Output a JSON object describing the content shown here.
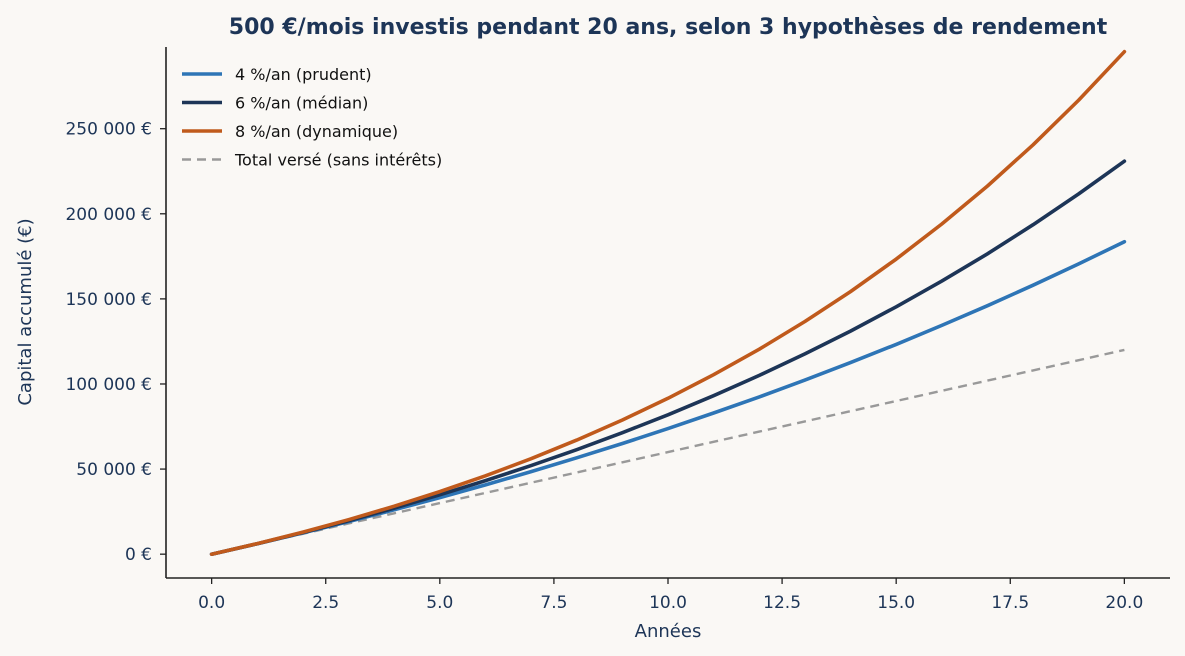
{
  "chart_data": {
    "type": "line",
    "title": "500 €/mois investis pendant 20 ans, selon 3 hypothèses de rendement",
    "xlabel": "Années",
    "ylabel": "Capital accumulé (€)",
    "xlim": [
      -1,
      21
    ],
    "ylim": [
      -14000,
      298000
    ],
    "xticks": [
      0,
      2.5,
      5,
      7.5,
      10,
      12.5,
      15,
      17.5,
      20
    ],
    "xtick_labels": [
      "0.0",
      "2.5",
      "5.0",
      "7.5",
      "10.0",
      "12.5",
      "15.0",
      "17.5",
      "20.0"
    ],
    "yticks": [
      0,
      50000,
      100000,
      150000,
      200000,
      250000
    ],
    "ytick_labels": [
      "0 €",
      "50 000 €",
      "100 000 €",
      "150 000 €",
      "200 000 €",
      "250 000 €"
    ],
    "grid": false,
    "legend_position": "top-left",
    "x": [
      0,
      1,
      2,
      3,
      4,
      5,
      6,
      7,
      8,
      9,
      10,
      11,
      12,
      13,
      14,
      15,
      16,
      17,
      18,
      19,
      20
    ],
    "series": [
      {
        "name": "4 %/an (prudent)",
        "color": "#2e75b6",
        "style": "solid",
        "values": [
          0,
          6130,
          12500,
          19150,
          26050,
          33240,
          40720,
          48500,
          56600,
          65030,
          73800,
          82930,
          92420,
          102300,
          112580,
          123280,
          134410,
          145980,
          158030,
          170560,
          183600
        ]
      },
      {
        "name": "6 %/an (médian)",
        "color": "#1d3557",
        "style": "solid",
        "values": [
          0,
          6170,
          12720,
          19670,
          27050,
          34890,
          43200,
          52030,
          61400,
          71350,
          81910,
          93130,
          105030,
          117670,
          131090,
          145330,
          160460,
          176510,
          193560,
          211660,
          230880
        ]
      },
      {
        "name": "8 %/an (dynamique)",
        "color": "#c05a1c",
        "style": "solid",
        "values": [
          0,
          6230,
          12970,
          20280,
          28190,
          36760,
          46050,
          56110,
          67000,
          78810,
          91600,
          105450,
          120450,
          136700,
          154290,
          173350,
          194000,
          216350,
          240560,
          266800,
          295210
        ]
      },
      {
        "name": "Total versé (sans intérêts)",
        "color": "#999999",
        "style": "dashed",
        "values": [
          0,
          6000,
          12000,
          18000,
          24000,
          30000,
          36000,
          42000,
          48000,
          54000,
          60000,
          66000,
          72000,
          78000,
          84000,
          90000,
          96000,
          102000,
          108000,
          114000,
          120000
        ]
      }
    ]
  }
}
